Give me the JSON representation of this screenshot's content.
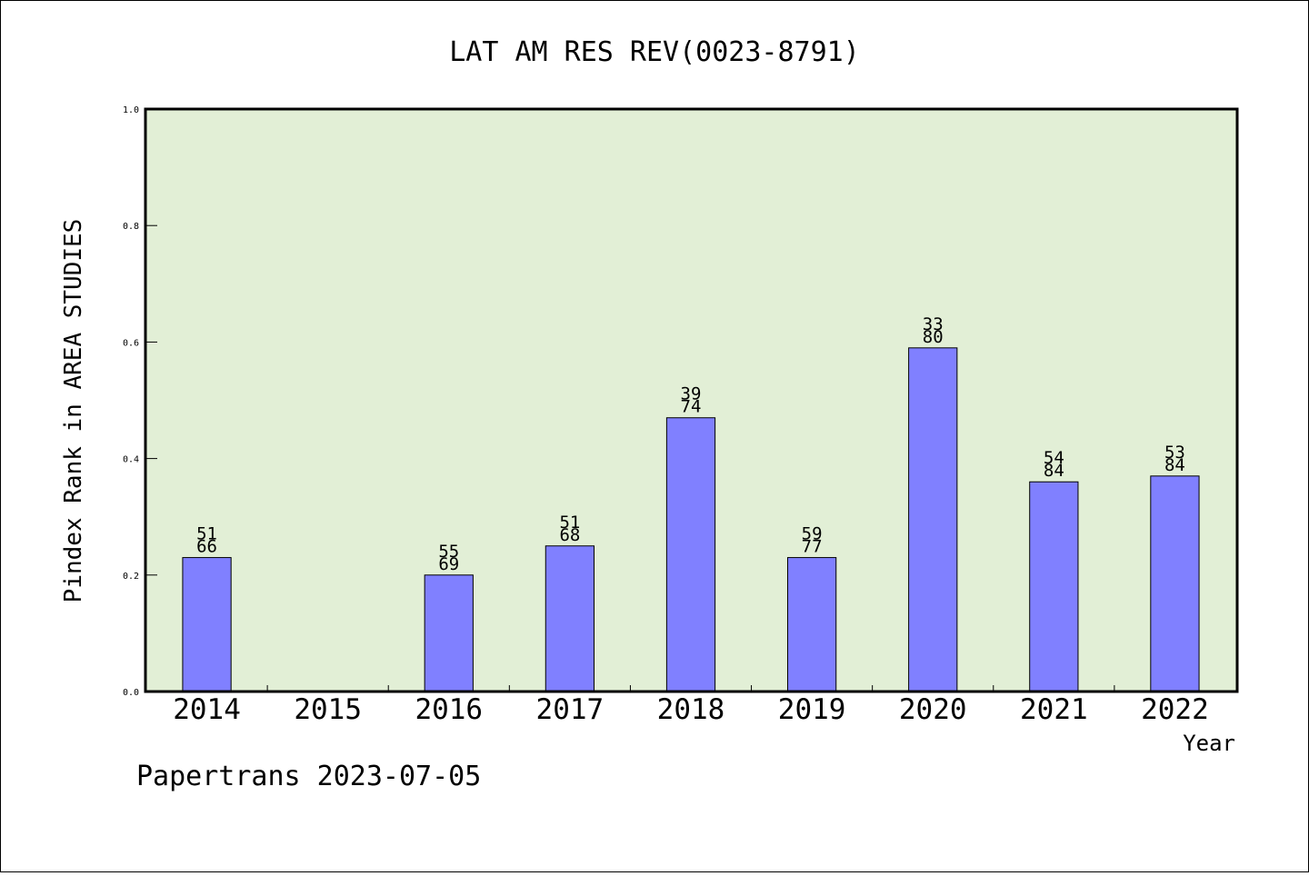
{
  "chart_data": {
    "type": "bar",
    "title": "LAT AM RES REV(0023-8791)",
    "xlabel": "Year",
    "ylabel": "Pindex Rank in AREA STUDIES",
    "ylim": [
      0,
      1.0
    ],
    "yticks": [
      "0.0",
      "0.2",
      "0.4",
      "0.6",
      "0.8",
      "1.0"
    ],
    "categories": [
      "2014",
      "2015",
      "2016",
      "2017",
      "2018",
      "2019",
      "2020",
      "2021",
      "2022"
    ],
    "values": [
      0.23,
      null,
      0.2,
      0.25,
      0.47,
      0.23,
      0.59,
      0.36,
      0.37
    ],
    "labels_top": [
      "51",
      "",
      "55",
      "51",
      "39",
      "59",
      "33",
      "54",
      "53"
    ],
    "labels_bottom": [
      "66",
      "",
      "69",
      "68",
      "74",
      "77",
      "80",
      "84",
      "84"
    ],
    "grid": false,
    "legend": "none",
    "colors": {
      "bar": "#8080ff",
      "plot_background": "#e2efd6",
      "axis": "#000000"
    }
  },
  "footer": "Papertrans 2023-07-05"
}
